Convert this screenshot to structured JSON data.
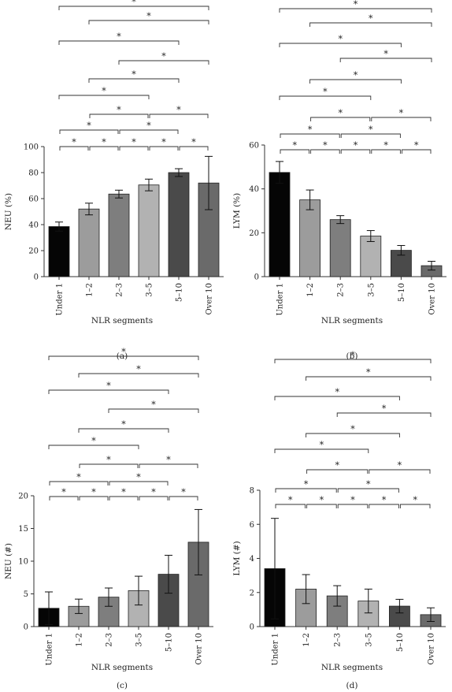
{
  "chart_data": [
    {
      "panel": "(a)",
      "type": "bar",
      "categories": [
        "Under 1",
        "1–2",
        "2–3",
        "3–5",
        "5–10",
        "Over 10"
      ],
      "values": [
        38.5,
        52,
        63.5,
        70.5,
        80,
        72
      ],
      "errors": [
        3.5,
        4.5,
        3,
        4.5,
        3,
        20.5
      ],
      "colors": [
        "#050505",
        "#9c9c9c",
        "#7e7e7e",
        "#b2b2b2",
        "#4a4a4a",
        "#6a6a6a"
      ],
      "xlabel": "NLR segments",
      "ylabel": "NEU (%)",
      "ylim": [
        0,
        100
      ],
      "yticks": [
        0,
        20,
        40,
        60,
        80,
        100
      ],
      "significance_mark": "*",
      "significance_pairs": [
        [
          0,
          1
        ],
        [
          1,
          2
        ],
        [
          2,
          3
        ],
        [
          3,
          4
        ],
        [
          4,
          5
        ],
        [
          0,
          2
        ],
        [
          2,
          4
        ],
        [
          1,
          3
        ],
        [
          3,
          5
        ],
        [
          0,
          3
        ],
        [
          1,
          4
        ],
        [
          2,
          5
        ],
        [
          0,
          4
        ],
        [
          1,
          5
        ],
        [
          0,
          5
        ]
      ]
    },
    {
      "panel": "(b)",
      "type": "bar",
      "categories": [
        "Under 1",
        "1–2",
        "2–3",
        "3–5",
        "5–10",
        "Over 10"
      ],
      "values": [
        47.5,
        35,
        26,
        18.5,
        12,
        5
      ],
      "errors": [
        5,
        4.5,
        1.8,
        2.5,
        2.2,
        2
      ],
      "colors": [
        "#050505",
        "#9c9c9c",
        "#7e7e7e",
        "#b2b2b2",
        "#4a4a4a",
        "#6a6a6a"
      ],
      "xlabel": "NLR segments",
      "ylabel": "LYM (%)",
      "ylim": [
        0,
        60
      ],
      "yticks": [
        0,
        20,
        40,
        60
      ],
      "significance_mark": "*",
      "significance_pairs": [
        [
          0,
          1
        ],
        [
          1,
          2
        ],
        [
          2,
          3
        ],
        [
          3,
          4
        ],
        [
          4,
          5
        ],
        [
          0,
          2
        ],
        [
          2,
          4
        ],
        [
          1,
          3
        ],
        [
          3,
          5
        ],
        [
          0,
          3
        ],
        [
          1,
          4
        ],
        [
          2,
          5
        ],
        [
          0,
          4
        ],
        [
          1,
          5
        ],
        [
          0,
          5
        ]
      ]
    },
    {
      "panel": "(c)",
      "type": "bar",
      "categories": [
        "Under 1",
        "1–2",
        "2–3",
        "3–5",
        "5–10",
        "Over 10"
      ],
      "values": [
        2.8,
        3.1,
        4.5,
        5.5,
        8,
        12.9
      ],
      "errors": [
        2.5,
        1.1,
        1.4,
        2.2,
        2.9,
        5
      ],
      "colors": [
        "#050505",
        "#9c9c9c",
        "#7e7e7e",
        "#b2b2b2",
        "#4a4a4a",
        "#6a6a6a"
      ],
      "xlabel": "NLR segments",
      "ylabel": "NEU (#)",
      "ylim": [
        0,
        20
      ],
      "yticks": [
        0,
        5,
        10,
        15,
        20
      ],
      "significance_mark": "*",
      "significance_pairs": [
        [
          0,
          1
        ],
        [
          1,
          2
        ],
        [
          2,
          3
        ],
        [
          3,
          4
        ],
        [
          4,
          5
        ],
        [
          0,
          2
        ],
        [
          2,
          4
        ],
        [
          1,
          3
        ],
        [
          3,
          5
        ],
        [
          0,
          3
        ],
        [
          1,
          4
        ],
        [
          2,
          5
        ],
        [
          0,
          4
        ],
        [
          1,
          5
        ],
        [
          0,
          5
        ]
      ]
    },
    {
      "panel": "(d)",
      "type": "bar",
      "categories": [
        "Under 1",
        "1–2",
        "2–3",
        "3–5",
        "5–10",
        "Over 10"
      ],
      "values": [
        3.4,
        2.2,
        1.8,
        1.5,
        1.2,
        0.7
      ],
      "errors": [
        2.95,
        0.85,
        0.6,
        0.7,
        0.4,
        0.4
      ],
      "colors": [
        "#050505",
        "#9c9c9c",
        "#7e7e7e",
        "#b2b2b2",
        "#4a4a4a",
        "#6a6a6a"
      ],
      "xlabel": "NLR segments",
      "ylabel": "LYM (#)",
      "ylim": [
        0,
        8
      ],
      "yticks": [
        0,
        2,
        4,
        6,
        8
      ],
      "significance_mark": "*",
      "significance_pairs": [
        [
          0,
          1
        ],
        [
          1,
          2
        ],
        [
          2,
          3
        ],
        [
          3,
          4
        ],
        [
          4,
          5
        ],
        [
          0,
          2
        ],
        [
          2,
          4
        ],
        [
          1,
          3
        ],
        [
          3,
          5
        ],
        [
          0,
          3
        ],
        [
          1,
          4
        ],
        [
          2,
          5
        ],
        [
          0,
          4
        ],
        [
          1,
          5
        ],
        [
          0,
          5
        ]
      ]
    }
  ]
}
